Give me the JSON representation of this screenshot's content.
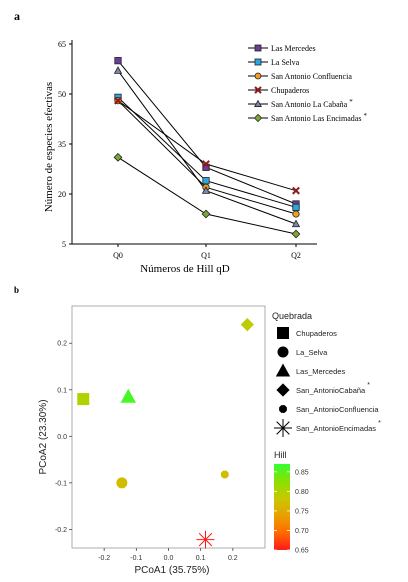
{
  "panel_a": {
    "panel_label": "a",
    "chart_data": {
      "type": "line",
      "categories": [
        "Q0",
        "Q1",
        "Q2"
      ],
      "xlabel": "Números de Hill qD",
      "ylabel": "Número de especies efectivas",
      "ylim": [
        5,
        65
      ],
      "yticks": [
        "5",
        "20",
        "35",
        "50",
        "65"
      ],
      "legend_position": "top-right",
      "series": [
        {
          "name": "Las Mercedes",
          "values": [
            60,
            28,
            17
          ],
          "marker": "square",
          "color": "#6a3d9a"
        },
        {
          "name": "La Selva",
          "values": [
            49,
            24,
            16
          ],
          "marker": "square",
          "color": "#2aa6e0"
        },
        {
          "name": "San Antonio Confluencia",
          "values": [
            48,
            22,
            14
          ],
          "marker": "circle",
          "color": "#f0a020"
        },
        {
          "name": "Chupaderos",
          "values": [
            48,
            29,
            21
          ],
          "marker": "cross",
          "color": "#8b1a1a"
        },
        {
          "name": "San Antonio La Cabaña",
          "values": [
            57,
            21,
            11
          ],
          "marker": "triangle",
          "color": "#7a86b0",
          "note": "*"
        },
        {
          "name": "San Antonio Las Encimadas",
          "values": [
            31,
            14,
            8
          ],
          "marker": "diamond",
          "color": "#7aa832",
          "note": "*"
        }
      ]
    }
  },
  "panel_b": {
    "panel_label": "b",
    "chart_data": {
      "type": "scatter",
      "xlabel": "PCoA1 (35.75%)",
      "ylabel": "PCoA2 (23.30%)",
      "xlim": [
        -0.3,
        0.3
      ],
      "ylim": [
        -0.24,
        0.28
      ],
      "xticks": [
        -0.2,
        -0.1,
        0.0,
        0.1,
        0.2
      ],
      "xtick_labels": [
        "-0.2",
        "-0.1",
        "0.0",
        "0.1",
        "0.2"
      ],
      "yticks": [
        -0.2,
        -0.1,
        0.0,
        0.1,
        0.2
      ],
      "ytick_labels": [
        "-0.2",
        "-0.1",
        "0.0",
        "0.1",
        "0.2"
      ],
      "points": [
        {
          "name": "Chupaderos",
          "x": -0.265,
          "y": 0.08,
          "shape": "square",
          "hill": 0.8
        },
        {
          "name": "La_Selva",
          "x": -0.145,
          "y": -0.1,
          "shape": "circle",
          "hill": 0.77
        },
        {
          "name": "Las_Mercedes",
          "x": -0.125,
          "y": 0.085,
          "shape": "triangle",
          "hill": 0.86
        },
        {
          "name": "San_AntonioCabaña",
          "x": 0.245,
          "y": 0.24,
          "shape": "diamond",
          "hill": 0.79
        },
        {
          "name": "San_AntonioConfluencia",
          "x": 0.175,
          "y": -0.082,
          "shape": "octagon",
          "hill": 0.77
        },
        {
          "name": "San_AntonioEncimadas",
          "x": 0.115,
          "y": -0.222,
          "shape": "asterisk",
          "hill": 0.65
        }
      ],
      "legend_title": "Quebrada",
      "legend_items": [
        {
          "label": "Chupaderos",
          "shape": "square",
          "note": ""
        },
        {
          "label": "La_Selva",
          "shape": "circle",
          "note": ""
        },
        {
          "label": "Las_Mercedes",
          "shape": "triangle",
          "note": ""
        },
        {
          "label": "San_AntonioCabaña",
          "shape": "diamond",
          "note": "*"
        },
        {
          "label": "San_AntonioConfluencia",
          "shape": "octagon",
          "note": ""
        },
        {
          "label": "San_AntonioEncimadas",
          "shape": "asterisk",
          "note": "*"
        }
      ],
      "colorbar_title": "Hill",
      "colorbar_range": [
        0.65,
        0.87
      ],
      "colorbar_ticks": [
        0.85,
        0.8,
        0.75,
        0.7,
        0.65
      ],
      "colorbar_tick_labels": [
        "0.85",
        "0.80",
        "0.75",
        "0.70",
        "0.65"
      ],
      "colorbar_colors": [
        "#ff1a1a",
        "#ff6a00",
        "#e8a000",
        "#c8c800",
        "#8ae000",
        "#33ff33"
      ]
    }
  }
}
